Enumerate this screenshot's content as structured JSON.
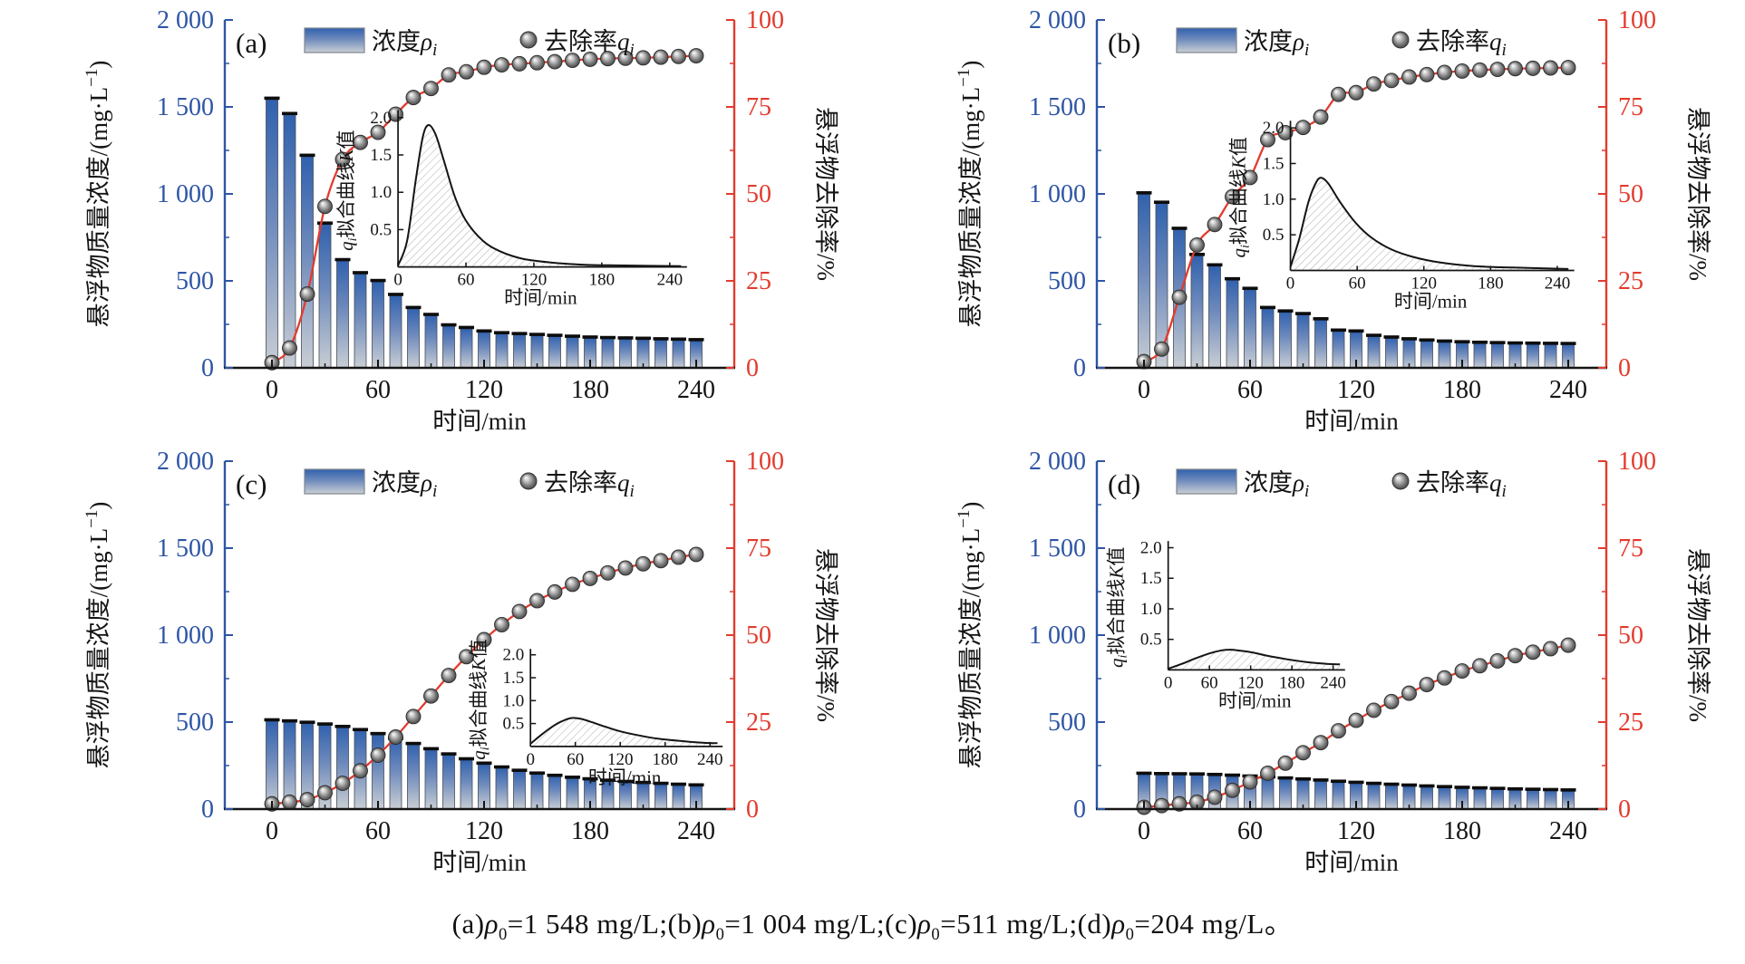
{
  "figure": {
    "caption_plain": "(a)ρ0=1 548 mg/L;(b)ρ0=1 004 mg/L;(c)ρ0=511 mg/L;(d)ρ0=204 mg/L。",
    "caption_segments": [
      {
        "t": "(a)"
      },
      {
        "it": "ρ"
      },
      {
        "sub": "0"
      },
      {
        "t": "=1 548 mg/L;"
      },
      {
        "t": "(b)"
      },
      {
        "it": "ρ"
      },
      {
        "sub": "0"
      },
      {
        "t": "=1 004 mg/L;"
      },
      {
        "t": "(c)"
      },
      {
        "it": "ρ"
      },
      {
        "sub": "0"
      },
      {
        "t": "=511 mg/L;"
      },
      {
        "t": "(d)"
      },
      {
        "it": "ρ"
      },
      {
        "sub": "0"
      },
      {
        "t": "=204 mg/L。"
      }
    ]
  },
  "colors": {
    "axis_left": "#2e55a5",
    "axis_right": "#e23b2e",
    "curve": "#e23b2e",
    "bar_top": "#3061ae",
    "bar_mid": "#6e8abc",
    "bar_bottom": "#c9ced4",
    "bar_cap": "#0d0d0d",
    "marker_dark": "#424242",
    "axis_black": "#141414",
    "hatch": "#a9aeb4"
  },
  "axes": {
    "left_label_prefix": "悬浮物质量浓度/(mg·L",
    "left_label_sup": "−1",
    "left_label_suffix": ")",
    "right_label": "悬浮物去除率/%",
    "xlabel": "时间/min",
    "left_tick_labels": [
      "0",
      "500",
      "1 000",
      "1 500",
      "2 000"
    ],
    "left_tick_values": [
      0,
      500,
      1000,
      1500,
      2000
    ],
    "left_range": [
      0,
      2000
    ],
    "right_tick_labels": [
      "0",
      "25",
      "50",
      "75",
      "100"
    ],
    "right_tick_values": [
      0,
      25,
      50,
      75,
      100
    ],
    "right_range": [
      0,
      100
    ],
    "x_tick_labels": [
      "0",
      "60",
      "120",
      "180",
      "240"
    ],
    "x_tick_values": [
      0,
      60,
      120,
      180,
      240
    ],
    "x_range": [
      0,
      250
    ],
    "grid": "off"
  },
  "legend": {
    "position": "top-inside",
    "conc_prefix": "浓度",
    "conc_symbol": "ρ",
    "conc_sub": "i",
    "rate_prefix": "去除率",
    "rate_symbol": "q",
    "rate_sub": "i"
  },
  "inset_axes": {
    "ylabel_q": "q",
    "ylabel_sub": "i",
    "ylabel_mid": "拟合曲线",
    "ylabel_K": "K",
    "ylabel_end": "值",
    "y_tick_labels": [
      "0.5",
      "1.0",
      "1.5",
      "2.0"
    ],
    "y_tick_values": [
      0.5,
      1.0,
      1.5,
      2.0
    ],
    "y_axis_max": 2.0,
    "x_tick_labels": [
      "0",
      "60",
      "120",
      "180",
      "240"
    ],
    "x_tick_values": [
      0,
      60,
      120,
      180,
      240
    ],
    "xlabel": "时间/min"
  },
  "chart_data": [
    {
      "id": "a",
      "panel_label": "(a)",
      "type": "bar+line",
      "rho0_mg_L": 1548,
      "time_min": [
        0,
        10,
        20,
        30,
        40,
        50,
        60,
        70,
        80,
        90,
        100,
        110,
        120,
        130,
        140,
        150,
        160,
        170,
        180,
        190,
        200,
        210,
        220,
        230,
        240
      ],
      "concentration_mg_L": [
        1548,
        1460,
        1220,
        830,
        620,
        545,
        500,
        420,
        345,
        305,
        245,
        230,
        210,
        200,
        195,
        190,
        185,
        180,
        175,
        172,
        170,
        168,
        165,
        163,
        160
      ],
      "removal_percent": [
        1.5,
        5.7,
        21.2,
        46.4,
        59.9,
        64.8,
        67.7,
        72.9,
        77.7,
        80.3,
        84.2,
        85.1,
        86.4,
        87.1,
        87.4,
        87.7,
        88.0,
        88.4,
        88.7,
        88.9,
        89.0,
        89.1,
        89.3,
        89.5,
        89.7
      ],
      "inset": {
        "peak_K": 1.9,
        "t": [
          0,
          8,
          16,
          22,
          27,
          33,
          40,
          50,
          60,
          75,
          90,
          110,
          135,
          165,
          200,
          250
        ],
        "K": [
          0.02,
          0.35,
          1.2,
          1.75,
          1.9,
          1.78,
          1.45,
          0.95,
          0.62,
          0.35,
          0.21,
          0.11,
          0.06,
          0.03,
          0.02,
          0.01
        ],
        "pos": [
          0.34,
          0.27,
          0.9,
          0.71
        ]
      }
    },
    {
      "id": "b",
      "panel_label": "(b)",
      "type": "bar+line",
      "rho0_mg_L": 1004,
      "time_min": [
        0,
        10,
        20,
        30,
        40,
        50,
        60,
        70,
        80,
        90,
        100,
        110,
        120,
        130,
        140,
        150,
        160,
        170,
        180,
        190,
        200,
        210,
        220,
        230,
        240
      ],
      "concentration_mg_L": [
        1004,
        950,
        800,
        650,
        590,
        510,
        455,
        345,
        325,
        310,
        280,
        215,
        210,
        185,
        175,
        165,
        158,
        152,
        148,
        145,
        143,
        141,
        140,
        139,
        138
      ],
      "removal_percent": [
        1.8,
        5.4,
        20.3,
        35.3,
        41.2,
        49.2,
        54.7,
        65.6,
        67.6,
        69.1,
        72.1,
        78.6,
        79.1,
        81.6,
        82.6,
        83.6,
        84.3,
        84.9,
        85.3,
        85.6,
        85.8,
        86.0,
        86.1,
        86.2,
        86.3
      ],
      "inset": {
        "peak_K": 1.3,
        "t": [
          0,
          8,
          16,
          22,
          27,
          34,
          45,
          58,
          72,
          90,
          110,
          135,
          165,
          200,
          250
        ],
        "K": [
          0.05,
          0.45,
          0.95,
          1.2,
          1.3,
          1.22,
          0.95,
          0.68,
          0.47,
          0.3,
          0.19,
          0.11,
          0.06,
          0.04,
          0.02
        ],
        "pos": [
          0.38,
          0.3,
          0.93,
          0.72
        ]
      }
    },
    {
      "id": "c",
      "panel_label": "(c)",
      "type": "bar+line",
      "rho0_mg_L": 511,
      "time_min": [
        0,
        10,
        20,
        30,
        40,
        50,
        60,
        70,
        80,
        90,
        100,
        110,
        120,
        130,
        140,
        150,
        160,
        170,
        180,
        190,
        200,
        210,
        220,
        230,
        240
      ],
      "concentration_mg_L": [
        511,
        505,
        497,
        487,
        473,
        455,
        432,
        405,
        375,
        345,
        315,
        287,
        262,
        240,
        221,
        205,
        192,
        181,
        172,
        164,
        157,
        151,
        146,
        141,
        137
      ],
      "removal_percent": [
        1.5,
        2.0,
        2.7,
        4.7,
        7.4,
        11.0,
        15.5,
        20.7,
        26.6,
        32.5,
        38.4,
        43.8,
        48.7,
        53.0,
        56.8,
        59.9,
        62.4,
        64.6,
        66.3,
        67.9,
        69.3,
        70.5,
        71.4,
        72.4,
        73.2
      ],
      "inset": {
        "peak_K": 0.62,
        "t": [
          0,
          15,
          30,
          42,
          55,
          68,
          82,
          100,
          120,
          145,
          170,
          200,
          230,
          250
        ],
        "K": [
          0.06,
          0.26,
          0.44,
          0.55,
          0.62,
          0.6,
          0.53,
          0.43,
          0.33,
          0.24,
          0.17,
          0.12,
          0.08,
          0.07
        ],
        "pos": [
          0.6,
          0.55,
          0.97,
          0.82
        ]
      }
    },
    {
      "id": "d",
      "panel_label": "(d)",
      "type": "bar+line",
      "rho0_mg_L": 204,
      "time_min": [
        0,
        10,
        20,
        30,
        40,
        50,
        60,
        70,
        80,
        90,
        100,
        110,
        120,
        130,
        140,
        150,
        160,
        170,
        180,
        190,
        200,
        210,
        220,
        230,
        240
      ],
      "concentration_mg_L": [
        204,
        202,
        201,
        200,
        197,
        193,
        188,
        183,
        177,
        171,
        165,
        158,
        152,
        146,
        141,
        136,
        131,
        127,
        123,
        120,
        117,
        114,
        112,
        110,
        108
      ],
      "removal_percent": [
        0.5,
        1.0,
        1.5,
        2.0,
        3.4,
        5.4,
        7.8,
        10.3,
        13.2,
        16.2,
        19.1,
        22.5,
        25.5,
        28.4,
        30.9,
        33.3,
        35.8,
        37.7,
        39.7,
        41.2,
        42.6,
        44.1,
        45.1,
        46.1,
        47.1
      ],
      "inset": {
        "peak_K": 0.33,
        "t": [
          0,
          20,
          40,
          60,
          78,
          92,
          108,
          125,
          145,
          170,
          200,
          230,
          250
        ],
        "K": [
          0.02,
          0.1,
          0.19,
          0.27,
          0.32,
          0.33,
          0.31,
          0.28,
          0.23,
          0.18,
          0.13,
          0.1,
          0.09
        ],
        "pos": [
          0.14,
          0.24,
          0.48,
          0.6
        ]
      }
    }
  ]
}
